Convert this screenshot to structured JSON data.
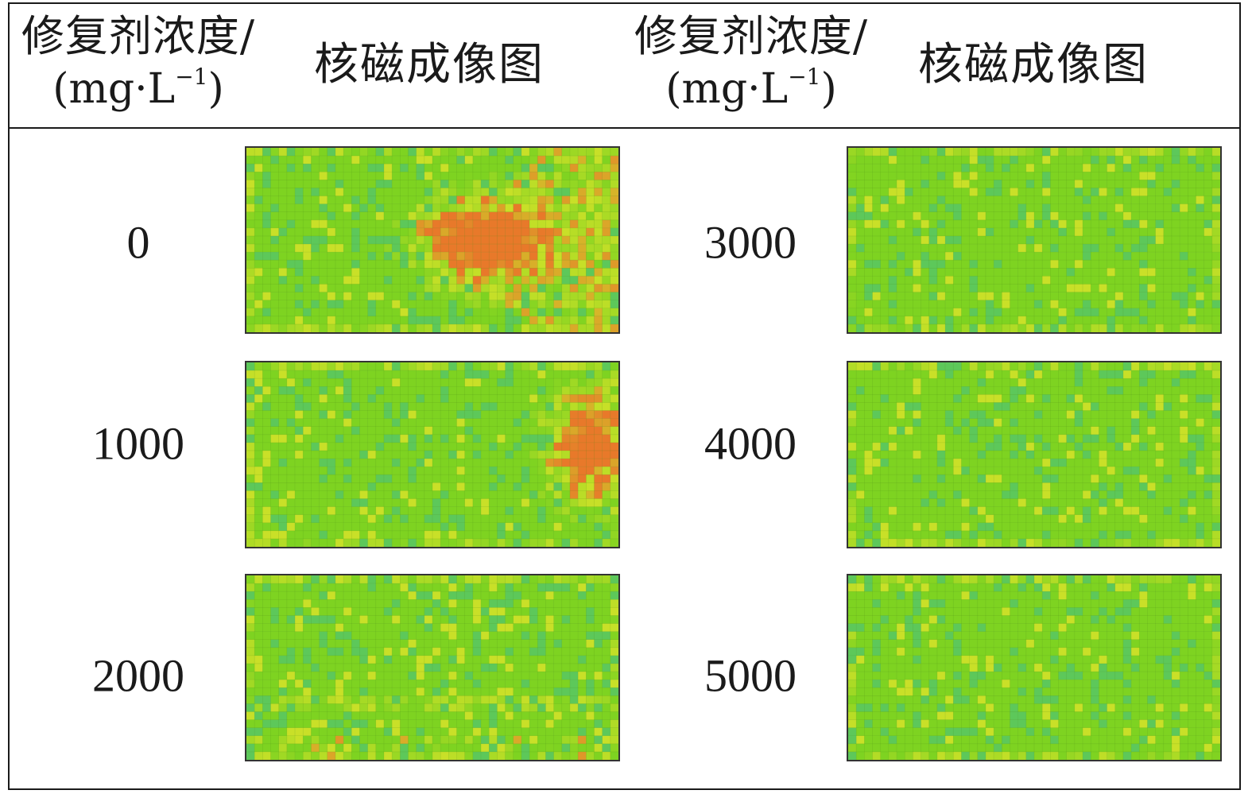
{
  "header": {
    "left_col1_line1": "修复剂浓度/",
    "left_col1_line2": "(mg·L",
    "left_col1_sup": "−1",
    "left_col1_close": ")",
    "left_col2": "核磁成像图",
    "right_col1_line1": "修复剂浓度/",
    "right_col1_line2": "(mg·L",
    "right_col1_sup": "−1",
    "right_col1_close": ")",
    "right_col2": "核磁成像图"
  },
  "rows": [
    {
      "concentration": "0",
      "hotspot": "center-right"
    },
    {
      "concentration": "1000",
      "hotspot": "right"
    },
    {
      "concentration": "2000",
      "hotspot": "bottom-band"
    },
    {
      "concentration": "3000",
      "hotspot": "edges"
    },
    {
      "concentration": "4000",
      "hotspot": "edges"
    },
    {
      "concentration": "5000",
      "hotspot": "edges"
    }
  ],
  "colors": {
    "low": "#7ed321",
    "mid": "#c9e028",
    "high": "#e8792a",
    "cool": "#5dc85a",
    "grid_line": "#4a8a1a"
  }
}
